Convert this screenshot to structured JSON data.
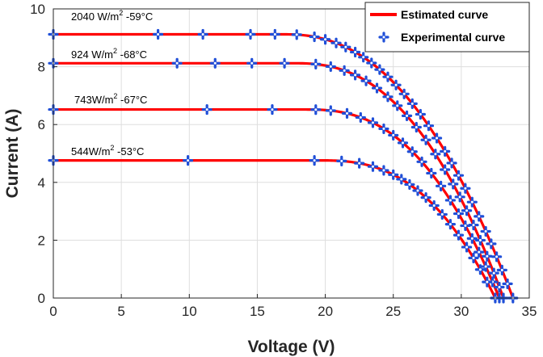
{
  "chart_data": {
    "type": "line",
    "title": "",
    "xlabel": "Voltage (V)",
    "ylabel": "Current (A)",
    "xlim": [
      0,
      35
    ],
    "ylim": [
      0,
      10
    ],
    "xticks": [
      "0",
      "5",
      "10",
      "15",
      "20",
      "25",
      "30",
      "35"
    ],
    "yticks": [
      "0",
      "2",
      "4",
      "6",
      "8",
      "10"
    ],
    "grid": true,
    "legend_position": "top-right",
    "legend": {
      "estimated": "Estimated curve",
      "experimental": "Experimental curve"
    },
    "colors": {
      "estimated": "#ff0000",
      "experimental": "#1f4fd8",
      "grid": "#dedede"
    },
    "series": [
      {
        "name": "2040 W/m2 -59°C",
        "label": {
          "pre": "2040 W/m",
          "sup": "2",
          "post": " -59°C"
        },
        "isc": 9.12,
        "voc": 33.8,
        "knee": 17.0,
        "exponent": 2.3,
        "experimental_v": [
          0,
          7.7,
          11,
          14.5,
          16.3,
          17.9,
          19.2,
          20,
          20.8,
          21.5,
          22.2,
          22.8,
          23.4,
          24,
          24.6,
          25.2,
          25.8,
          26.4,
          27,
          27.6,
          28.2,
          28.8,
          29.3,
          29.8,
          30.3,
          30.8,
          31.3,
          31.8,
          32.2,
          32.6,
          33,
          33.4,
          33.8
        ]
      },
      {
        "name": "924 W/m2 -68°C",
        "label": {
          "pre": "924 W/m",
          "sup": "2",
          "post": " -68°C"
        },
        "isc": 8.12,
        "voc": 33.1,
        "knee": 17.8,
        "exponent": 2.4,
        "experimental_v": [
          0,
          9.1,
          11.9,
          14.6,
          17,
          19.3,
          20.4,
          21.4,
          22.2,
          23,
          23.8,
          24.6,
          25.3,
          26,
          26.7,
          27.4,
          28.1,
          28.8,
          29.4,
          29.9,
          30.4,
          30.9,
          31.4,
          31.9,
          32.4,
          32.8,
          33.1
        ]
      },
      {
        "name": "743W/m2 -67°C",
        "label": {
          "pre": "743W/m",
          "sup": "2",
          "post": " -67°C"
        },
        "isc": 6.52,
        "voc": 32.8,
        "knee": 18.6,
        "exponent": 2.5,
        "experimental_v": [
          0,
          11.3,
          16.1,
          19.3,
          20.4,
          21.6,
          22.6,
          23.5,
          24.3,
          25,
          25.7,
          26.4,
          27.1,
          27.8,
          28.5,
          29.2,
          29.8,
          30.3,
          30.8,
          31.3,
          31.8,
          32.3,
          32.8
        ]
      },
      {
        "name": "544W/m2 -53°C",
        "label": {
          "pre": "544W/m",
          "sup": "2",
          "post": " -53°C"
        },
        "isc": 4.76,
        "voc": 32.5,
        "knee": 19.6,
        "exponent": 2.6,
        "experimental_v": [
          0,
          9.9,
          19.2,
          21.2,
          22.5,
          23.5,
          24.3,
          25,
          25.6,
          26.2,
          26.8,
          27.4,
          28,
          28.6,
          29.2,
          29.8,
          30.4,
          30.9,
          31.4,
          31.9,
          32.5
        ]
      }
    ]
  }
}
